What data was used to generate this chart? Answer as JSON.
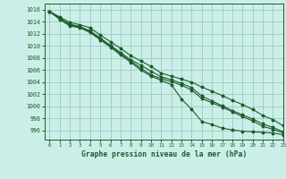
{
  "xlabel": "Graphe pression niveau de la mer (hPa)",
  "xlim": [
    -0.5,
    23
  ],
  "ylim": [
    994.5,
    1017
  ],
  "yticks": [
    996,
    998,
    1000,
    1002,
    1004,
    1006,
    1008,
    1010,
    1012,
    1014,
    1016
  ],
  "xticks": [
    0,
    1,
    2,
    3,
    4,
    5,
    6,
    7,
    8,
    9,
    10,
    11,
    12,
    13,
    14,
    15,
    16,
    17,
    18,
    19,
    20,
    21,
    22,
    23
  ],
  "bg_color": "#cceee8",
  "grid_color": "#99ccbb",
  "line_color": "#1a5c2a",
  "line1": [
    1015.7,
    1014.4,
    1013.3,
    1013.0,
    1012.2,
    1011.0,
    1009.8,
    1008.5,
    1007.3,
    1006.0,
    1005.0,
    1004.3,
    1003.6,
    1001.2,
    999.5,
    997.5,
    997.0,
    996.4,
    996.1,
    995.9,
    995.8,
    995.7,
    995.6,
    995.3
  ],
  "line2": [
    1015.7,
    1014.8,
    1013.9,
    1013.5,
    1013.0,
    1011.8,
    1010.7,
    1009.6,
    1008.4,
    1007.5,
    1006.6,
    1005.5,
    1005.0,
    1004.5,
    1004.0,
    1003.2,
    1002.5,
    1001.8,
    1001.0,
    1000.3,
    999.5,
    998.5,
    997.8,
    996.8
  ],
  "line3": [
    1015.7,
    1014.6,
    1013.6,
    1013.2,
    1012.5,
    1011.3,
    1010.1,
    1008.9,
    1007.7,
    1006.8,
    1005.8,
    1004.9,
    1004.4,
    1003.8,
    1003.1,
    1001.7,
    1000.9,
    1000.1,
    999.3,
    998.6,
    997.9,
    997.1,
    996.5,
    995.8
  ],
  "line4": [
    1015.7,
    1014.5,
    1013.5,
    1013.1,
    1012.4,
    1011.2,
    1010.0,
    1008.7,
    1007.5,
    1006.3,
    1005.2,
    1004.6,
    1004.1,
    1003.5,
    1002.7,
    1001.3,
    1000.6,
    999.9,
    999.1,
    998.3,
    997.6,
    996.7,
    996.2,
    995.6
  ]
}
